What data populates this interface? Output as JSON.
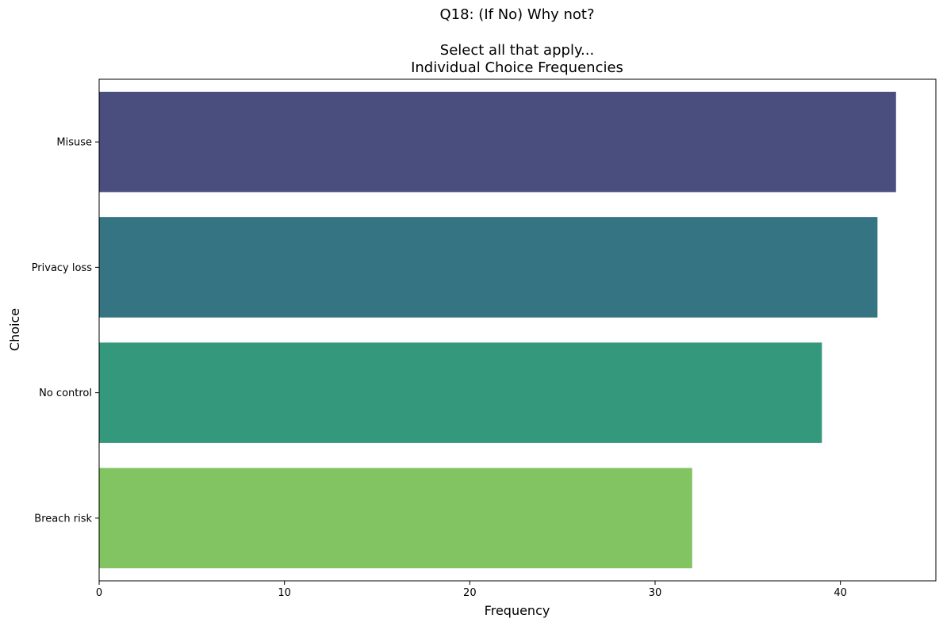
{
  "chart_data": {
    "type": "bar",
    "orientation": "horizontal",
    "title_lines": [
      "Q18: (If No) Why not?",
      "",
      "Select all that apply...",
      "Individual Choice Frequencies"
    ],
    "xlabel": "Frequency",
    "ylabel": "Choice",
    "categories": [
      "Misuse",
      "Privacy loss",
      "No control",
      "Breach risk"
    ],
    "values": [
      43,
      42,
      39,
      32
    ],
    "colors": [
      "#4a4e7e",
      "#357482",
      "#34987d",
      "#81c461"
    ],
    "xlim": [
      0,
      45.15
    ],
    "xticks": [
      0,
      10,
      20,
      30,
      40
    ],
    "grid": false,
    "legend": "none"
  }
}
